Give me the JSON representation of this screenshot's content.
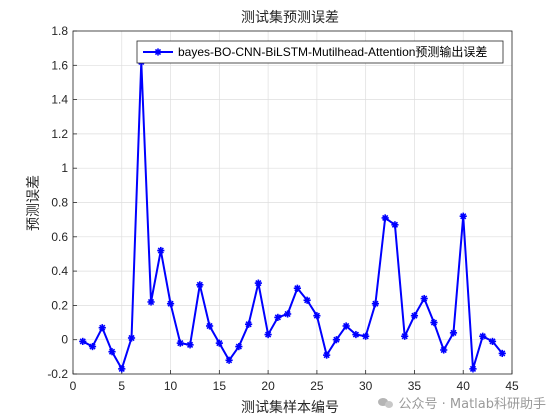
{
  "chart_data": {
    "type": "line",
    "title": "测试集预测误差",
    "xlabel": "测试集样本编号",
    "ylabel": "预测误差",
    "xlim": [
      0,
      45
    ],
    "ylim": [
      -0.2,
      1.8
    ],
    "xticks": [
      0,
      5,
      10,
      15,
      20,
      25,
      30,
      35,
      40,
      45
    ],
    "yticks": [
      -0.2,
      0,
      0.2,
      0.4,
      0.6,
      0.8,
      1,
      1.2,
      1.4,
      1.6,
      1.8
    ],
    "grid": true,
    "legend_position": "top-right",
    "series": [
      {
        "name": "bayes-BO-CNN-BiLSTM-Mutilhead-Attention预测输出误差",
        "color": "#0000ff",
        "marker": "asterisk",
        "x": [
          1,
          2,
          3,
          4,
          5,
          6,
          7,
          8,
          9,
          10,
          11,
          12,
          13,
          14,
          15,
          16,
          17,
          18,
          19,
          20,
          21,
          22,
          23,
          24,
          25,
          26,
          27,
          28,
          29,
          30,
          31,
          32,
          33,
          34,
          35,
          36,
          37,
          38,
          39,
          40,
          41,
          42,
          43,
          44
        ],
        "y": [
          -0.01,
          -0.04,
          0.07,
          -0.07,
          -0.17,
          0.01,
          1.62,
          0.22,
          0.52,
          0.21,
          -0.02,
          -0.03,
          0.32,
          0.08,
          -0.02,
          -0.12,
          -0.04,
          0.09,
          0.33,
          0.03,
          0.13,
          0.15,
          0.3,
          0.23,
          0.14,
          -0.09,
          0.0,
          0.08,
          0.03,
          0.02,
          0.21,
          0.71,
          0.67,
          0.02,
          0.14,
          0.24,
          0.1,
          -0.06,
          0.04,
          0.72,
          -0.17,
          0.02,
          -0.01,
          -0.08
        ]
      }
    ]
  },
  "watermark": {
    "text": "公众号 · Matlab科研助手",
    "icon": "wechat-icon"
  }
}
